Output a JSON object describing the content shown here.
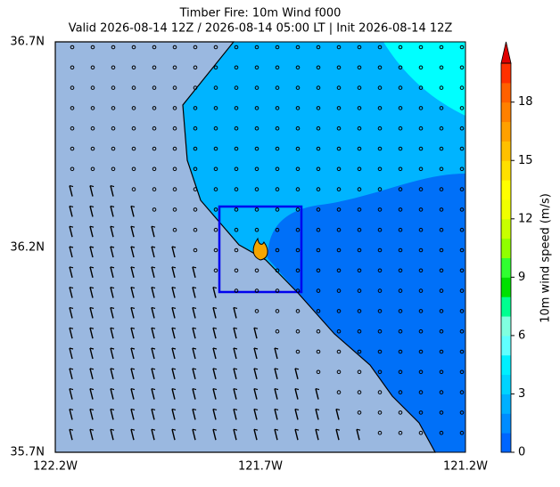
{
  "header": {
    "title": "Timber Fire: 10m Wind f000",
    "subtitle": "Valid 2026-08-14 12Z / 2026-08-14 05:00 LT | Init 2026-08-14 12Z"
  },
  "map": {
    "y_labels": [
      "36.7N",
      "36.2N",
      "35.7N"
    ],
    "x_labels": [
      "122.2W",
      "121.7W",
      "121.2W"
    ]
  },
  "colorbar": {
    "label": "10m wind speed (m/s)",
    "lim": [
      0,
      20
    ],
    "ticks": [
      0,
      3,
      6,
      9,
      12,
      15,
      18
    ],
    "colors": [
      "#0066ff",
      "#008cff",
      "#00b0ff",
      "#00d4ff",
      "#00f0ff",
      "#60ffff",
      "#80ffe0",
      "#00ff90",
      "#00e000",
      "#30ff30",
      "#90ff00",
      "#c8ff00",
      "#f0ff00",
      "#ffff00",
      "#ffe000",
      "#ffc000",
      "#ffa000",
      "#ff8000",
      "#ff6000",
      "#ff3000"
    ],
    "extend_color": "#e00000"
  }
}
